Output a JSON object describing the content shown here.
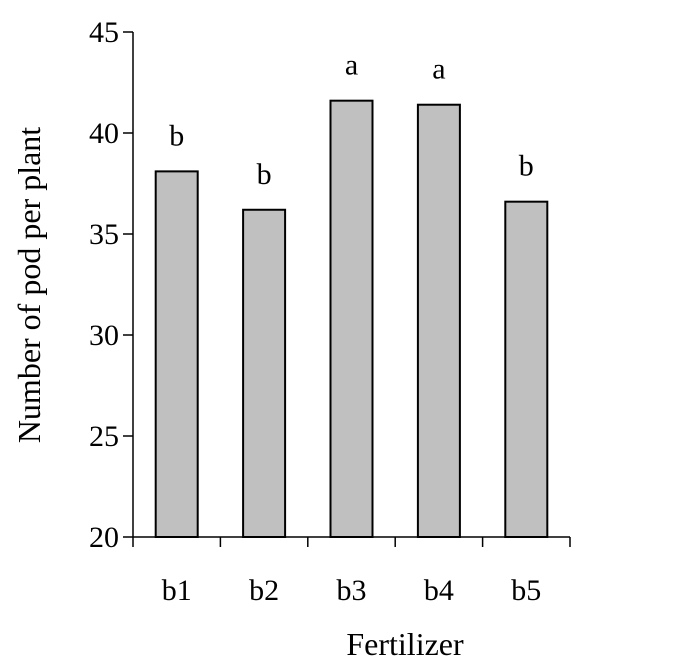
{
  "chart_data": {
    "type": "bar",
    "categories": [
      "b1",
      "b2",
      "b3",
      "b4",
      "b5"
    ],
    "values": [
      38.1,
      36.2,
      41.6,
      41.4,
      36.6
    ],
    "significance_letters": [
      "b",
      "b",
      "a",
      "a",
      "b"
    ],
    "title": "",
    "xlabel": "Fertilizer",
    "ylabel": "Number of pod per plant",
    "ylim": [
      20,
      45
    ],
    "yticks": [
      "20",
      "25",
      "30",
      "35",
      "40",
      "45"
    ],
    "grid": false,
    "legend": "none",
    "bar_color": "#c0c0c0",
    "bar_edge_color": "#000000"
  }
}
